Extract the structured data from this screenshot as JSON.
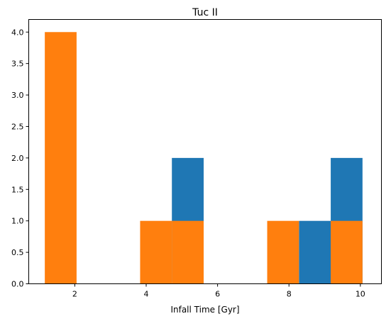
{
  "chart_data": {
    "type": "bar",
    "title": "Tuc II",
    "xlabel": "Infall Time [Gyr]",
    "ylabel": "",
    "xlim": [
      0.71,
      10.59
    ],
    "ylim": [
      0,
      4.2
    ],
    "xticks": [
      2,
      4,
      6,
      8,
      10
    ],
    "xtick_labels": [
      "2",
      "4",
      "6",
      "8",
      "10"
    ],
    "yticks": [
      0.0,
      0.5,
      1.0,
      1.5,
      2.0,
      2.5,
      3.0,
      3.5,
      4.0
    ],
    "ytick_labels": [
      "0.0",
      "0.5",
      "1.0",
      "1.5",
      "2.0",
      "2.5",
      "3.0",
      "3.5",
      "4.0"
    ],
    "grid": false,
    "bin_edges": [
      1.16,
      2.05,
      2.94,
      3.83,
      4.72,
      5.61,
      6.5,
      7.39,
      8.28,
      9.17,
      10.06
    ],
    "series": [
      {
        "color": "#1f77b4",
        "values": [
          0,
          0,
          0,
          0,
          2,
          0,
          0,
          0,
          1,
          2
        ]
      },
      {
        "color": "#ff7f0e",
        "values": [
          4,
          0,
          0,
          1,
          1,
          0,
          0,
          1,
          0,
          1
        ]
      }
    ]
  }
}
